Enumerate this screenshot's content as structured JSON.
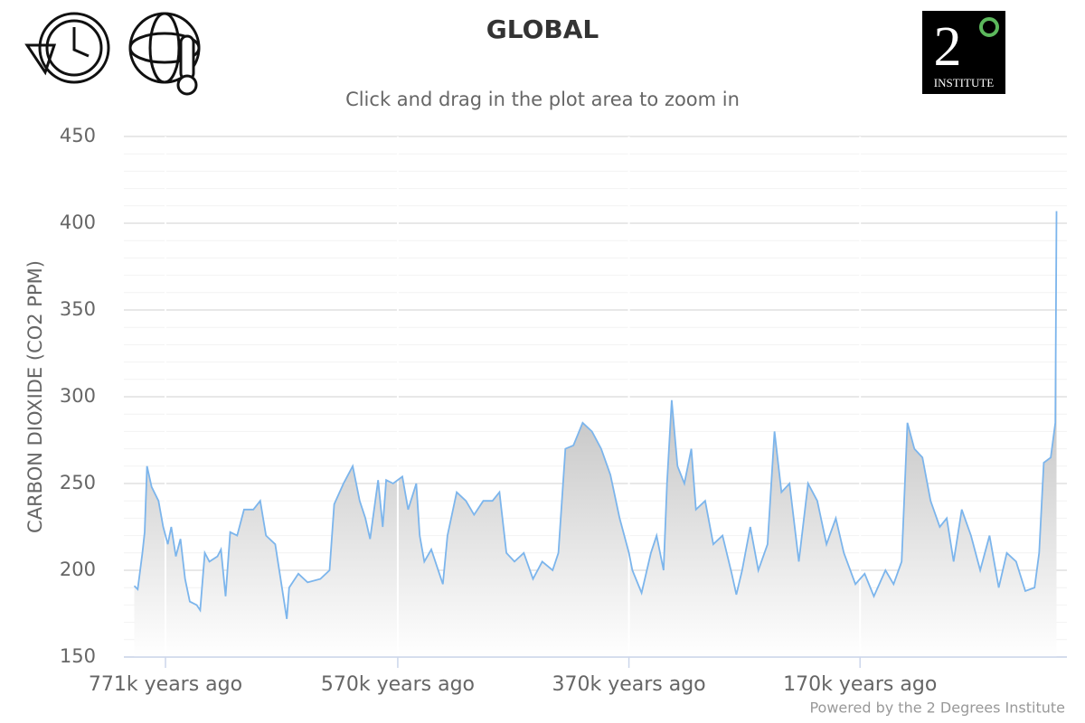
{
  "chart_data": {
    "type": "area",
    "title": "GLOBAL",
    "subtitle": "Click and drag in the plot area to zoom in",
    "y_label": "CARBON DIOXIDE (CO2 PPM)",
    "credits": "Powered by the 2 Degrees Institute",
    "logo": {
      "numeral": "2",
      "text": "INSTITUTE"
    },
    "xlim": [
      807,
      -9
    ],
    "xticks": [
      {
        "value": 771,
        "label": "771k years ago"
      },
      {
        "value": 570,
        "label": "570k years ago"
      },
      {
        "value": 370,
        "label": "370k years ago"
      },
      {
        "value": 170,
        "label": "170k years ago"
      }
    ],
    "ylim": [
      150,
      450
    ],
    "yticks": [
      150,
      200,
      250,
      300,
      350,
      400,
      450
    ],
    "minor_tick_interval": 10,
    "grid": true,
    "line_color": "#7cb5ec",
    "x": [
      798,
      795,
      791,
      789,
      787,
      783,
      777,
      773,
      769,
      766,
      762,
      758,
      754,
      750,
      744,
      741,
      737,
      733,
      726,
      723,
      719,
      715,
      709,
      703,
      695,
      689,
      684,
      676,
      666,
      664,
      656,
      648,
      637,
      629,
      625,
      617,
      609,
      603,
      598,
      594,
      587,
      583,
      580,
      574,
      566,
      561,
      554,
      551,
      547,
      541,
      531,
      527,
      519,
      511,
      504,
      496,
      488,
      482,
      476,
      469,
      461,
      453,
      445,
      436,
      431,
      425,
      418,
      410,
      402,
      394,
      386,
      378,
      370,
      367,
      359,
      351,
      346,
      340,
      337,
      333,
      328,
      322,
      316,
      312,
      304,
      297,
      289,
      281,
      277,
      272,
      265,
      258,
      250,
      244,
      238,
      231,
      223,
      215,
      207,
      199,
      191,
      184,
      174,
      166,
      158,
      148,
      141,
      134,
      129,
      123,
      116,
      109,
      101,
      95,
      89,
      82,
      74,
      66,
      58,
      50,
      43,
      35,
      27,
      19,
      15,
      11,
      5,
      1,
      0
    ],
    "values": [
      191,
      189,
      210,
      222,
      260,
      248,
      240,
      225,
      215,
      225,
      208,
      218,
      195,
      182,
      180,
      177,
      210,
      205,
      208,
      212,
      185,
      222,
      220,
      235,
      235,
      240,
      220,
      215,
      172,
      190,
      198,
      193,
      195,
      200,
      238,
      250,
      260,
      240,
      230,
      218,
      252,
      225,
      252,
      250,
      254,
      235,
      250,
      220,
      205,
      212,
      192,
      220,
      245,
      240,
      232,
      240,
      240,
      245,
      210,
      205,
      210,
      195,
      205,
      200,
      210,
      270,
      272,
      285,
      280,
      270,
      255,
      230,
      210,
      200,
      187,
      210,
      220,
      200,
      250,
      298,
      260,
      250,
      270,
      235,
      240,
      215,
      220,
      198,
      186,
      200,
      225,
      200,
      215,
      280,
      245,
      250,
      205,
      250,
      240,
      215,
      230,
      210,
      192,
      198,
      185,
      200,
      192,
      205,
      285,
      270,
      265,
      240,
      225,
      230,
      205,
      235,
      220,
      200,
      220,
      190,
      210,
      205,
      188,
      190,
      210,
      262,
      265,
      285,
      407
    ]
  }
}
